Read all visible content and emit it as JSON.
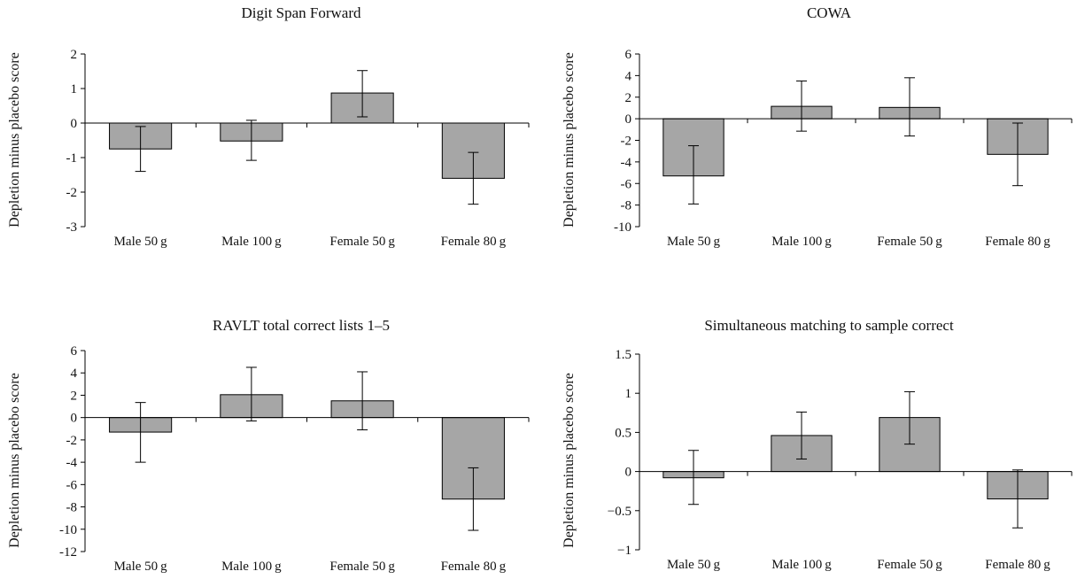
{
  "chart_data": [
    {
      "type": "bar",
      "title": "Digit Span Forward",
      "ylabel": "Depletion minus placebo score",
      "xlabel": "",
      "categories": [
        "Male 50 g",
        "Male 100 g",
        "Female 50 g",
        "Female 80 g"
      ],
      "values": [
        -0.75,
        -0.52,
        0.87,
        -1.6
      ],
      "error_low": [
        -1.4,
        -1.08,
        0.18,
        -2.35
      ],
      "error_high": [
        -0.1,
        0.08,
        1.52,
        -0.85
      ],
      "ylim": [
        -3,
        2
      ],
      "yticks": [
        -3,
        -2,
        -1,
        0,
        1,
        2
      ],
      "ytick_labels": [
        "-3",
        "-2",
        "-1",
        "0",
        "1",
        "2"
      ],
      "bar_color": "#a6a6a6",
      "grid": false
    },
    {
      "type": "bar",
      "title": "COWA",
      "ylabel": "Depletion minus placebo score",
      "xlabel": "",
      "categories": [
        "Male 50 g",
        "Male 100 g",
        "Female 50 g",
        "Female 80 g"
      ],
      "values": [
        -5.3,
        1.15,
        1.05,
        -3.3
      ],
      "error_low": [
        -7.9,
        -1.15,
        -1.6,
        -6.2
      ],
      "error_high": [
        -2.5,
        3.5,
        3.8,
        -0.4
      ],
      "ylim": [
        -10,
        6
      ],
      "yticks": [
        -10,
        -8,
        -6,
        -4,
        -2,
        0,
        2,
        4,
        6
      ],
      "ytick_labels": [
        "-10",
        "-8",
        "-6",
        "-4",
        "-2",
        "0",
        "2",
        "4",
        "6"
      ],
      "bar_color": "#a6a6a6",
      "grid": false
    },
    {
      "type": "bar",
      "title": "RAVLT total correct lists 1–5",
      "ylabel": "Depletion minus placebo score",
      "xlabel": "",
      "categories": [
        "Male 50 g",
        "Male 100 g",
        "Female 50 g",
        "Female 80 g"
      ],
      "values": [
        -1.3,
        2.05,
        1.5,
        -7.3
      ],
      "error_low": [
        -4.0,
        -0.3,
        -1.1,
        -10.1
      ],
      "error_high": [
        1.35,
        4.5,
        4.1,
        -4.5
      ],
      "ylim": [
        -12,
        6
      ],
      "yticks": [
        -12,
        -10,
        -8,
        -6,
        -4,
        -2,
        0,
        2,
        4,
        6
      ],
      "ytick_labels": [
        "-12",
        "-10",
        "-8",
        "-6",
        "-4",
        "-2",
        "0",
        "2",
        "4",
        "6"
      ],
      "bar_color": "#a6a6a6",
      "grid": false
    },
    {
      "type": "bar",
      "title": "Simultaneous matching to sample correct",
      "ylabel": "Depletion minus placebo score",
      "xlabel": "",
      "categories": [
        "Male 50 g",
        "Male 100 g",
        "Female 50 g",
        "Female 80 g"
      ],
      "values": [
        -0.08,
        0.46,
        0.69,
        -0.35
      ],
      "error_low": [
        -0.42,
        0.16,
        0.35,
        -0.72
      ],
      "error_high": [
        0.27,
        0.76,
        1.02,
        0.02
      ],
      "ylim": [
        -1,
        1.5
      ],
      "yticks": [
        -1,
        -0.5,
        0,
        0.5,
        1,
        1.5
      ],
      "ytick_labels": [
        "−1",
        "−0.5",
        "0",
        "0.5",
        "1",
        "1.5"
      ],
      "bar_color": "#a6a6a6",
      "grid": false
    }
  ]
}
